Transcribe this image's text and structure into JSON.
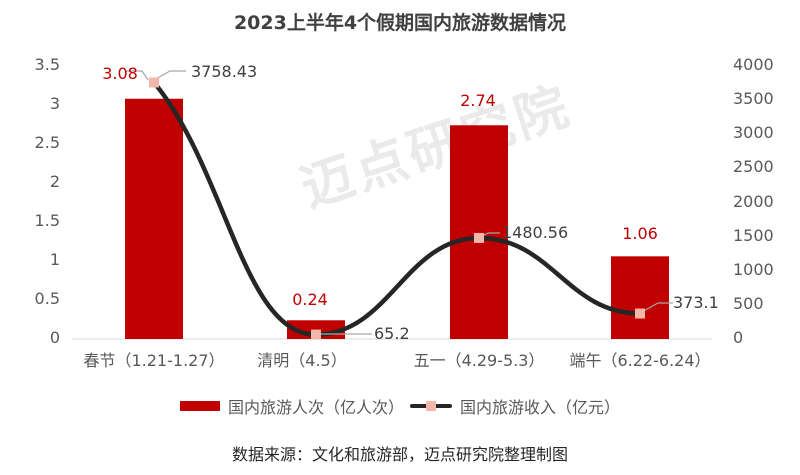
{
  "title": "2023上半年4个假期国内旅游数据情况",
  "watermark": "迈点研究院",
  "left_axis_ticks": [
    "0",
    "0.5",
    "1",
    "1.5",
    "2",
    "2.5",
    "3",
    "3.5"
  ],
  "right_axis_ticks": [
    "0",
    "500",
    "1000",
    "1500",
    "2000",
    "2500",
    "3000",
    "3500",
    "4000"
  ],
  "categories": [
    "春节（1.21-1.27）",
    "清明（4.5）",
    "五一（4.29-5.3）",
    "端午（6.22-6.24）"
  ],
  "bar_labels": [
    "3.08",
    "0.24",
    "2.74",
    "1.06"
  ],
  "line_labels": [
    "3758.43",
    "65.2",
    "1480.56",
    "373.1"
  ],
  "legend": {
    "bar": "国内旅游人次（亿人次）",
    "line": "国内旅游收入（亿元）"
  },
  "source": "数据来源：文化和旅游部，迈点研究院整理制图",
  "colors": {
    "bar": "#c00000",
    "line": "#262626",
    "marker": "#f4b6a8",
    "bar_label": "#c00000"
  },
  "chart_data": {
    "type": "bar+line",
    "title": "2023上半年4个假期国内旅游数据情况",
    "categories": [
      "春节（1.21-1.27）",
      "清明（4.5）",
      "五一（4.29-5.3）",
      "端午（6.22-6.24）"
    ],
    "series": [
      {
        "name": "国内旅游人次（亿人次）",
        "type": "bar",
        "axis": "left",
        "values": [
          3.08,
          0.24,
          2.74,
          1.06
        ]
      },
      {
        "name": "国内旅游收入（亿元）",
        "type": "line",
        "axis": "right",
        "smooth": true,
        "values": [
          3758.43,
          65.2,
          1480.56,
          373.1
        ]
      }
    ],
    "left_ylim": [
      0,
      3.5
    ],
    "left_yticks": [
      0,
      0.5,
      1,
      1.5,
      2,
      2.5,
      3,
      3.5
    ],
    "right_ylim": [
      0,
      4000
    ],
    "right_yticks": [
      0,
      500,
      1000,
      1500,
      2000,
      2500,
      3000,
      3500,
      4000
    ],
    "xlabel": "",
    "ylabel": "",
    "grid": false,
    "legend_position": "bottom",
    "annotation": "数据来源：文化和旅游部，迈点研究院整理制图"
  }
}
